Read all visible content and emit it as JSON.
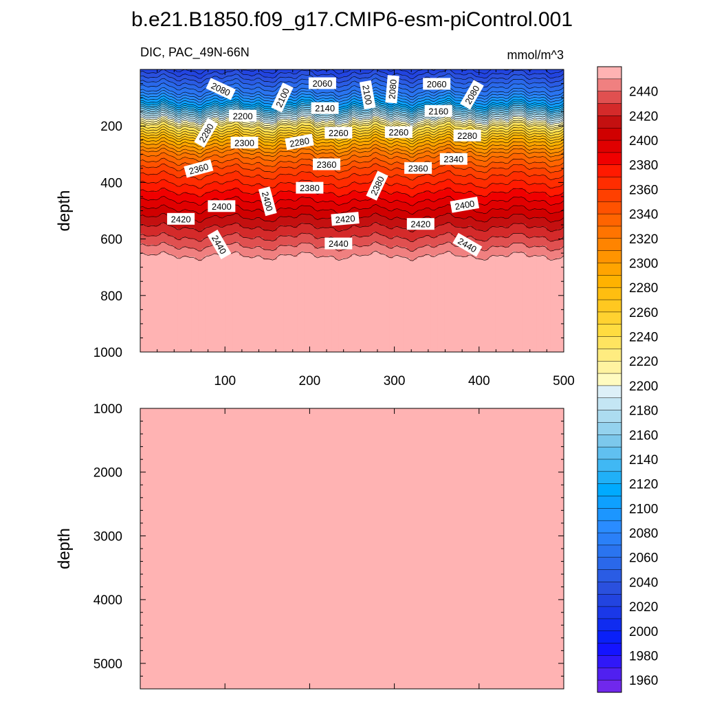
{
  "figure": {
    "title": "b.e21.B1850.f09_g17.CMIP6-esm-piControl.001",
    "subtitle_left": "DIC, PAC_49N-66N",
    "subtitle_right": "mmol/m^3"
  },
  "chart_data": [
    {
      "type": "heatmap",
      "panel": "upper",
      "xlim": [
        0,
        500
      ],
      "ylim": [
        1000,
        0
      ],
      "y_reversed": true,
      "xticks": [
        "100",
        "200",
        "300",
        "400",
        "500"
      ],
      "yticks": [
        "200",
        "400",
        "600",
        "800",
        "1000"
      ],
      "ylabel": "depth",
      "xlabel": "",
      "depth_profile": [
        {
          "depth": 0,
          "value": 2020
        },
        {
          "depth": 40,
          "value": 2045
        },
        {
          "depth": 80,
          "value": 2070
        },
        {
          "depth": 120,
          "value": 2110
        },
        {
          "depth": 160,
          "value": 2170
        },
        {
          "depth": 200,
          "value": 2230
        },
        {
          "depth": 250,
          "value": 2285
        },
        {
          "depth": 300,
          "value": 2325
        },
        {
          "depth": 360,
          "value": 2355
        },
        {
          "depth": 420,
          "value": 2375
        },
        {
          "depth": 480,
          "value": 2395
        },
        {
          "depth": 540,
          "value": 2415
        },
        {
          "depth": 600,
          "value": 2432
        },
        {
          "depth": 660,
          "value": 2450
        },
        {
          "depth": 1000,
          "value": 2460
        }
      ],
      "contour_labels": [
        {
          "text": "2080",
          "x": 95,
          "depth": 70,
          "angle": 25
        },
        {
          "text": "2060",
          "x": 215,
          "depth": 50,
          "angle": 0
        },
        {
          "text": "2100",
          "x": 168,
          "depth": 100,
          "angle": -65
        },
        {
          "text": "2100",
          "x": 268,
          "depth": 90,
          "angle": 80
        },
        {
          "text": "2080",
          "x": 298,
          "depth": 70,
          "angle": -85
        },
        {
          "text": "2060",
          "x": 350,
          "depth": 52,
          "angle": 0
        },
        {
          "text": "2080",
          "x": 392,
          "depth": 90,
          "angle": -60
        },
        {
          "text": "2200",
          "x": 121,
          "depth": 165,
          "angle": 0
        },
        {
          "text": "2140",
          "x": 218,
          "depth": 138,
          "angle": 0
        },
        {
          "text": "2160",
          "x": 352,
          "depth": 148,
          "angle": 0
        },
        {
          "text": "2280",
          "x": 78,
          "depth": 225,
          "angle": -60
        },
        {
          "text": "2300",
          "x": 123,
          "depth": 260,
          "angle": 0
        },
        {
          "text": "2280",
          "x": 188,
          "depth": 258,
          "angle": -10
        },
        {
          "text": "2260",
          "x": 234,
          "depth": 225,
          "angle": 0
        },
        {
          "text": "2260",
          "x": 305,
          "depth": 223,
          "angle": 0
        },
        {
          "text": "2280",
          "x": 386,
          "depth": 235,
          "angle": 0
        },
        {
          "text": "2360",
          "x": 69,
          "depth": 352,
          "angle": -15
        },
        {
          "text": "2360",
          "x": 220,
          "depth": 337,
          "angle": 0
        },
        {
          "text": "2340",
          "x": 370,
          "depth": 318,
          "angle": 0
        },
        {
          "text": "2360",
          "x": 328,
          "depth": 350,
          "angle": 0
        },
        {
          "text": "2380",
          "x": 280,
          "depth": 412,
          "angle": -65
        },
        {
          "text": "2380",
          "x": 200,
          "depth": 420,
          "angle": 0
        },
        {
          "text": "2400",
          "x": 96,
          "depth": 485,
          "angle": 0
        },
        {
          "text": "2400",
          "x": 150,
          "depth": 467,
          "angle": 75
        },
        {
          "text": "2400",
          "x": 383,
          "depth": 480,
          "angle": -10
        },
        {
          "text": "2420",
          "x": 48,
          "depth": 530,
          "angle": 0
        },
        {
          "text": "2420",
          "x": 242,
          "depth": 530,
          "angle": -5
        },
        {
          "text": "2420",
          "x": 331,
          "depth": 548,
          "angle": 0
        },
        {
          "text": "2440",
          "x": 93,
          "depth": 620,
          "angle": 60
        },
        {
          "text": "2440",
          "x": 234,
          "depth": 617,
          "angle": 0
        },
        {
          "text": "2440",
          "x": 386,
          "depth": 622,
          "angle": 30
        }
      ]
    },
    {
      "type": "heatmap",
      "panel": "lower",
      "xlim": [
        0,
        500
      ],
      "ylim": [
        5400,
        1000
      ],
      "y_reversed": true,
      "yticks": [
        "1000",
        "2000",
        "3000",
        "4000",
        "5000"
      ],
      "ylabel": "depth",
      "fill_value": 2460
    }
  ],
  "colorbar": {
    "label_values": [
      "2440",
      "2420",
      "2400",
      "2380",
      "2360",
      "2340",
      "2320",
      "2300",
      "2280",
      "2260",
      "2240",
      "2220",
      "2200",
      "2180",
      "2160",
      "2140",
      "2120",
      "2100",
      "2080",
      "2060",
      "2040",
      "2020",
      "2000",
      "1980",
      "1960"
    ],
    "bins": [
      {
        "lo": 2450,
        "hi": 2460,
        "color": "#ffb3b3"
      },
      {
        "lo": 2440,
        "hi": 2450,
        "color": "#f08080"
      },
      {
        "lo": 2430,
        "hi": 2440,
        "color": "#e05050"
      },
      {
        "lo": 2420,
        "hi": 2430,
        "color": "#d42a2a"
      },
      {
        "lo": 2410,
        "hi": 2420,
        "color": "#c41010"
      },
      {
        "lo": 2400,
        "hi": 2410,
        "color": "#d00000"
      },
      {
        "lo": 2390,
        "hi": 2400,
        "color": "#e00000"
      },
      {
        "lo": 2380,
        "hi": 2390,
        "color": "#f00000"
      },
      {
        "lo": 2370,
        "hi": 2380,
        "color": "#ff1a00"
      },
      {
        "lo": 2360,
        "hi": 2370,
        "color": "#ff2d00"
      },
      {
        "lo": 2350,
        "hi": 2360,
        "color": "#ff4000"
      },
      {
        "lo": 2340,
        "hi": 2350,
        "color": "#ff5200"
      },
      {
        "lo": 2330,
        "hi": 2340,
        "color": "#ff6400"
      },
      {
        "lo": 2320,
        "hi": 2330,
        "color": "#ff7400"
      },
      {
        "lo": 2310,
        "hi": 2320,
        "color": "#ff8400"
      },
      {
        "lo": 2300,
        "hi": 2310,
        "color": "#ff9400"
      },
      {
        "lo": 2290,
        "hi": 2300,
        "color": "#ffa400"
      },
      {
        "lo": 2280,
        "hi": 2290,
        "color": "#ffb200"
      },
      {
        "lo": 2270,
        "hi": 2280,
        "color": "#ffbe10"
      },
      {
        "lo": 2260,
        "hi": 2270,
        "color": "#ffc820"
      },
      {
        "lo": 2250,
        "hi": 2260,
        "color": "#ffd230"
      },
      {
        "lo": 2240,
        "hi": 2250,
        "color": "#ffdc40"
      },
      {
        "lo": 2230,
        "hi": 2240,
        "color": "#ffe460"
      },
      {
        "lo": 2220,
        "hi": 2230,
        "color": "#ffec80"
      },
      {
        "lo": 2210,
        "hi": 2220,
        "color": "#fff3a0"
      },
      {
        "lo": 2200,
        "hi": 2210,
        "color": "#fffbc0"
      },
      {
        "lo": 2190,
        "hi": 2200,
        "color": "#ddf0f8"
      },
      {
        "lo": 2180,
        "hi": 2190,
        "color": "#c4e6f4"
      },
      {
        "lo": 2170,
        "hi": 2180,
        "color": "#acdcf0"
      },
      {
        "lo": 2160,
        "hi": 2170,
        "color": "#94d2ee"
      },
      {
        "lo": 2150,
        "hi": 2160,
        "color": "#7cc8ec"
      },
      {
        "lo": 2140,
        "hi": 2150,
        "color": "#60c0f0"
      },
      {
        "lo": 2130,
        "hi": 2140,
        "color": "#40b8f4"
      },
      {
        "lo": 2120,
        "hi": 2130,
        "color": "#20b0f8"
      },
      {
        "lo": 2110,
        "hi": 2120,
        "color": "#00aaff"
      },
      {
        "lo": 2100,
        "hi": 2110,
        "color": "#0ea0ff"
      },
      {
        "lo": 2090,
        "hi": 2100,
        "color": "#1c96ff"
      },
      {
        "lo": 2080,
        "hi": 2090,
        "color": "#2a8cff"
      },
      {
        "lo": 2070,
        "hi": 2080,
        "color": "#2a80f8"
      },
      {
        "lo": 2060,
        "hi": 2070,
        "color": "#2a74f0"
      },
      {
        "lo": 2050,
        "hi": 2060,
        "color": "#2a68ea"
      },
      {
        "lo": 2040,
        "hi": 2050,
        "color": "#2a5ce4"
      },
      {
        "lo": 2030,
        "hi": 2040,
        "color": "#2a50de"
      },
      {
        "lo": 2020,
        "hi": 2030,
        "color": "#2244e0"
      },
      {
        "lo": 2010,
        "hi": 2020,
        "color": "#1a38e8"
      },
      {
        "lo": 2000,
        "hi": 2010,
        "color": "#102cf0"
      },
      {
        "lo": 1990,
        "hi": 2000,
        "color": "#0a20f8"
      },
      {
        "lo": 1980,
        "hi": 1990,
        "color": "#1414ff"
      },
      {
        "lo": 1970,
        "hi": 1980,
        "color": "#3018f8"
      },
      {
        "lo": 1960,
        "hi": 1970,
        "color": "#5020f0"
      },
      {
        "lo": 1950,
        "hi": 1960,
        "color": "#7028ec"
      }
    ]
  }
}
